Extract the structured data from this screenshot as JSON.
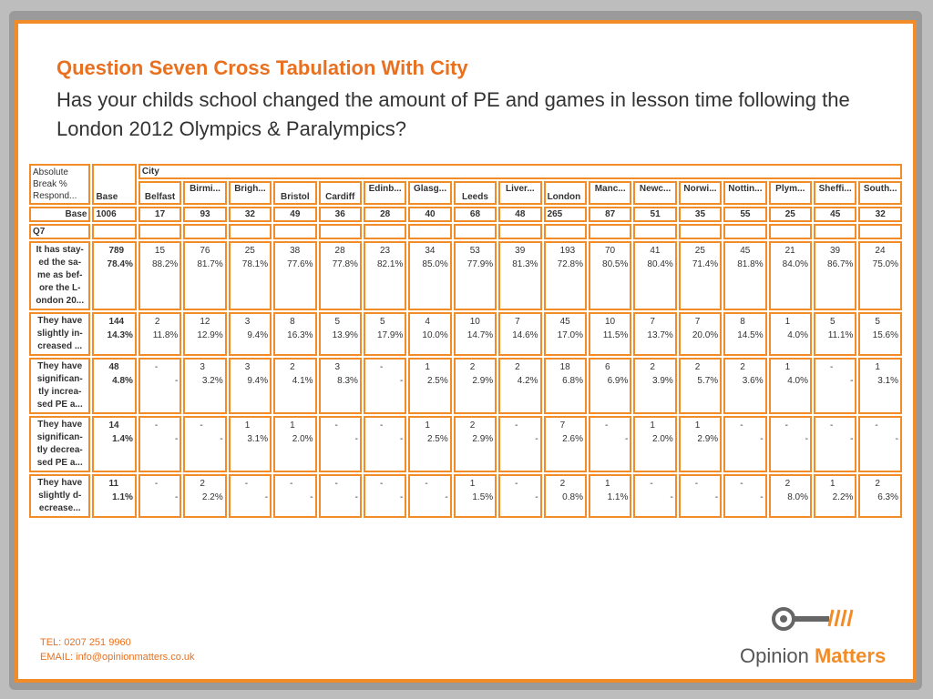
{
  "title": "Question Seven Cross Tabulation With City",
  "subtitle": "Has your childs school changed the amount of PE and games in lesson time following the London 2012 Olympics & Paralympics?",
  "table": {
    "corner_label": "Absolute Break % Respond...",
    "city_group": "City",
    "base_header": "Base",
    "columns": [
      "Belfast",
      "Birmi...",
      "Brigh...",
      "Bristol",
      "Cardiff",
      "Edinb...",
      "Glasg...",
      "Leeds",
      "Liver...",
      "London",
      "Manc...",
      "Newc...",
      "Norwi...",
      "Nottin...",
      "Plym...",
      "Sheffi...",
      "South..."
    ],
    "base_row": {
      "label": "Base",
      "total": "1006",
      "values": [
        "17",
        "93",
        "32",
        "49",
        "36",
        "28",
        "40",
        "68",
        "48",
        "265",
        "87",
        "51",
        "35",
        "55",
        "25",
        "45",
        "32"
      ]
    },
    "section_label": "Q7",
    "rows": [
      {
        "label": "It has stay-ed the sa-me as bef-ore the L-ondon 20...",
        "total": {
          "n": "789",
          "p": "78.4%"
        },
        "cells": [
          {
            "n": "15",
            "p": "88.2%"
          },
          {
            "n": "76",
            "p": "81.7%"
          },
          {
            "n": "25",
            "p": "78.1%"
          },
          {
            "n": "38",
            "p": "77.6%"
          },
          {
            "n": "28",
            "p": "77.8%"
          },
          {
            "n": "23",
            "p": "82.1%"
          },
          {
            "n": "34",
            "p": "85.0%"
          },
          {
            "n": "53",
            "p": "77.9%"
          },
          {
            "n": "39",
            "p": "81.3%"
          },
          {
            "n": "193",
            "p": "72.8%"
          },
          {
            "n": "70",
            "p": "80.5%"
          },
          {
            "n": "41",
            "p": "80.4%"
          },
          {
            "n": "25",
            "p": "71.4%"
          },
          {
            "n": "45",
            "p": "81.8%"
          },
          {
            "n": "21",
            "p": "84.0%"
          },
          {
            "n": "39",
            "p": "86.7%"
          },
          {
            "n": "24",
            "p": "75.0%"
          }
        ]
      },
      {
        "label": "They have slightly in-creased ...",
        "total": {
          "n": "144",
          "p": "14.3%"
        },
        "cells": [
          {
            "n": "2",
            "p": "11.8%"
          },
          {
            "n": "12",
            "p": "12.9%"
          },
          {
            "n": "3",
            "p": "9.4%"
          },
          {
            "n": "8",
            "p": "16.3%"
          },
          {
            "n": "5",
            "p": "13.9%"
          },
          {
            "n": "5",
            "p": "17.9%"
          },
          {
            "n": "4",
            "p": "10.0%"
          },
          {
            "n": "10",
            "p": "14.7%"
          },
          {
            "n": "7",
            "p": "14.6%"
          },
          {
            "n": "45",
            "p": "17.0%"
          },
          {
            "n": "10",
            "p": "11.5%"
          },
          {
            "n": "7",
            "p": "13.7%"
          },
          {
            "n": "7",
            "p": "20.0%"
          },
          {
            "n": "8",
            "p": "14.5%"
          },
          {
            "n": "1",
            "p": "4.0%"
          },
          {
            "n": "5",
            "p": "11.1%"
          },
          {
            "n": "5",
            "p": "15.6%"
          }
        ]
      },
      {
        "label": "They have significan-tly increa-sed PE a...",
        "total": {
          "n": "48",
          "p": "4.8%"
        },
        "cells": [
          {
            "n": "-",
            "p": "-"
          },
          {
            "n": "3",
            "p": "3.2%"
          },
          {
            "n": "3",
            "p": "9.4%"
          },
          {
            "n": "2",
            "p": "4.1%"
          },
          {
            "n": "3",
            "p": "8.3%"
          },
          {
            "n": "-",
            "p": "-"
          },
          {
            "n": "1",
            "p": "2.5%"
          },
          {
            "n": "2",
            "p": "2.9%"
          },
          {
            "n": "2",
            "p": "4.2%"
          },
          {
            "n": "18",
            "p": "6.8%"
          },
          {
            "n": "6",
            "p": "6.9%"
          },
          {
            "n": "2",
            "p": "3.9%"
          },
          {
            "n": "2",
            "p": "5.7%"
          },
          {
            "n": "2",
            "p": "3.6%"
          },
          {
            "n": "1",
            "p": "4.0%"
          },
          {
            "n": "-",
            "p": "-"
          },
          {
            "n": "1",
            "p": "3.1%"
          }
        ]
      },
      {
        "label": "They have significan-tly decrea-sed PE a...",
        "total": {
          "n": "14",
          "p": "1.4%"
        },
        "cells": [
          {
            "n": "-",
            "p": "-"
          },
          {
            "n": "-",
            "p": "-"
          },
          {
            "n": "1",
            "p": "3.1%"
          },
          {
            "n": "1",
            "p": "2.0%"
          },
          {
            "n": "-",
            "p": "-"
          },
          {
            "n": "-",
            "p": "-"
          },
          {
            "n": "1",
            "p": "2.5%"
          },
          {
            "n": "2",
            "p": "2.9%"
          },
          {
            "n": "-",
            "p": "-"
          },
          {
            "n": "7",
            "p": "2.6%"
          },
          {
            "n": "-",
            "p": "-"
          },
          {
            "n": "1",
            "p": "2.0%"
          },
          {
            "n": "1",
            "p": "2.9%"
          },
          {
            "n": "-",
            "p": "-"
          },
          {
            "n": "-",
            "p": "-"
          },
          {
            "n": "-",
            "p": "-"
          },
          {
            "n": "-",
            "p": "-"
          }
        ]
      },
      {
        "label": "They have slightly d-ecrease...",
        "total": {
          "n": "11",
          "p": "1.1%"
        },
        "cells": [
          {
            "n": "-",
            "p": "-"
          },
          {
            "n": "2",
            "p": "2.2%"
          },
          {
            "n": "-",
            "p": "-"
          },
          {
            "n": "-",
            "p": "-"
          },
          {
            "n": "-",
            "p": "-"
          },
          {
            "n": "-",
            "p": "-"
          },
          {
            "n": "-",
            "p": "-"
          },
          {
            "n": "1",
            "p": "1.5%"
          },
          {
            "n": "-",
            "p": "-"
          },
          {
            "n": "2",
            "p": "0.8%"
          },
          {
            "n": "1",
            "p": "1.1%"
          },
          {
            "n": "-",
            "p": "-"
          },
          {
            "n": "-",
            "p": "-"
          },
          {
            "n": "-",
            "p": "-"
          },
          {
            "n": "2",
            "p": "8.0%"
          },
          {
            "n": "1",
            "p": "2.2%"
          },
          {
            "n": "2",
            "p": "6.3%"
          }
        ]
      }
    ]
  },
  "footer": {
    "tel": "TEL: 0207 251 9960",
    "email": "EMAIL: info@opinionmatters.co.uk"
  },
  "logo": {
    "word1": "Opinion",
    "word2": "Matters",
    "icon": "key-icon"
  },
  "colors": {
    "accent": "#f28c28",
    "title": "#e8701e",
    "text": "#333333"
  }
}
